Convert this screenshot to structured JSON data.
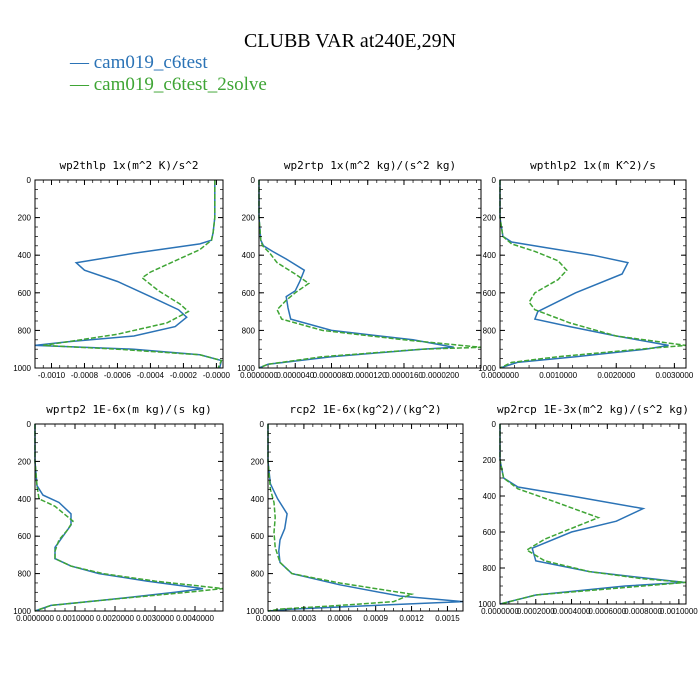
{
  "title": "CLUBB VAR at240E,29N",
  "legend": [
    {
      "label": "cam019_c6test",
      "color": "#2b73b6"
    },
    {
      "label": "cam019_c6test_2solve",
      "color": "#3fa535"
    }
  ],
  "chart_data": [
    {
      "type": "line",
      "title": "wp2thlp   1x(m^2 K)/s^2",
      "xlim": [
        -0.0011,
        4e-05
      ],
      "xticks": [
        -0.001,
        -0.0008,
        -0.0006,
        -0.0004,
        -0.0002,
        0.0
      ],
      "xtick_labels": [
        "-0.0010",
        "-0.0008",
        "-0.0006",
        "-0.0004",
        "-0.0002",
        "-0.0000"
      ],
      "ylim": [
        1000,
        0
      ],
      "yticks": [
        0,
        200,
        400,
        600,
        800,
        1000
      ],
      "series": [
        {
          "name": "cam019_c6test",
          "x": [
            -1e-05,
            -1e-05,
            -1e-05,
            -2e-05,
            -3e-05,
            -0.0001,
            -0.0005,
            -0.00085,
            -0.0008,
            -0.0006,
            -0.0004,
            -0.00023,
            -0.00018,
            -0.00025,
            -0.0005,
            -0.0009,
            -0.0011,
            -0.0005,
            -0.0001,
            3e-05,
            2e-05
          ],
          "y": [
            0,
            100,
            200,
            280,
            320,
            340,
            390,
            440,
            480,
            540,
            620,
            690,
            730,
            780,
            830,
            860,
            880,
            900,
            930,
            960,
            1000
          ]
        },
        {
          "name": "cam019_c6test_2solve",
          "x": [
            -1e-05,
            -1e-05,
            -1e-05,
            -2e-05,
            -3e-05,
            -0.0001,
            -0.00025,
            -0.0004,
            -0.00045,
            -0.00035,
            -0.00022,
            -0.00017,
            -0.0003,
            -0.0006,
            -0.0009,
            -0.00105,
            -0.0006,
            -0.0001,
            3e-05,
            1e-05
          ],
          "y": [
            0,
            100,
            200,
            280,
            320,
            370,
            430,
            490,
            520,
            590,
            660,
            700,
            760,
            820,
            860,
            880,
            900,
            930,
            960,
            1000
          ]
        }
      ]
    },
    {
      "type": "line",
      "title": "wp2rtp   1x(m^2 kg)/(s^2 kg)",
      "xlim": [
        0.0,
        2.45e-05
      ],
      "xticks": [
        0.0,
        4e-06,
        8e-06,
        1.2e-05,
        1.6e-05,
        2e-05
      ],
      "xtick_labels": [
        "0.0000000",
        "0.0000040",
        "0.0000080",
        "0.0000120",
        "0.0000160",
        "0.0000200"
      ],
      "ylim": [
        1000,
        0
      ],
      "yticks": [
        0,
        200,
        400,
        600,
        800,
        1000
      ],
      "series": [
        {
          "name": "cam019_c6test",
          "x": [
            0.0,
            0.0,
            2e-07,
            5e-07,
            1.5e-06,
            3e-06,
            5e-06,
            4.5e-06,
            4e-06,
            3e-06,
            3.2e-06,
            3.5e-06,
            8e-06,
            1.7e-05,
            2.15e-05,
            1.8e-05,
            8e-06,
            1e-06,
            0.0
          ],
          "y": [
            0,
            200,
            320,
            350,
            380,
            420,
            480,
            540,
            590,
            620,
            680,
            740,
            800,
            850,
            890,
            900,
            940,
            980,
            1000
          ]
        },
        {
          "name": "cam019_c6test_2solve",
          "x": [
            0.0,
            0.0,
            2e-07,
            4e-07,
            1.2e-06,
            2e-06,
            4e-06,
            5.5e-06,
            4e-06,
            3e-06,
            2e-06,
            2.5e-06,
            7e-06,
            1.6e-05,
            2.45e-05,
            1.8e-05,
            7e-06,
            1e-06,
            0.0
          ],
          "y": [
            0,
            200,
            320,
            350,
            390,
            440,
            500,
            550,
            600,
            640,
            690,
            740,
            800,
            850,
            890,
            900,
            940,
            980,
            1000
          ]
        }
      ]
    },
    {
      "type": "line",
      "title": "wpthlp2   1x(m K^2)/s",
      "xlim": [
        0.0,
        0.0032
      ],
      "xticks": [
        0.0,
        0.001,
        0.002,
        0.003
      ],
      "xtick_labels": [
        "0.0000000",
        "0.0010000",
        "0.0020000",
        "0.0030000"
      ],
      "ylim": [
        1000,
        0
      ],
      "yticks": [
        0,
        200,
        400,
        600,
        800,
        1000
      ],
      "series": [
        {
          "name": "cam019_c6test",
          "x": [
            0.0,
            0.0,
            5e-05,
            0.0002,
            0.0008,
            0.0016,
            0.0022,
            0.0021,
            0.0013,
            0.00065,
            0.0006,
            0.0012,
            0.002,
            0.0029,
            0.0025,
            0.0013,
            0.0003,
            0.0
          ],
          "y": [
            0,
            200,
            300,
            330,
            360,
            400,
            440,
            500,
            600,
            700,
            740,
            780,
            830,
            880,
            900,
            940,
            970,
            1000
          ]
        },
        {
          "name": "cam019_c6test_2solve",
          "x": [
            0.0,
            0.0,
            5e-05,
            0.0002,
            0.0006,
            0.001,
            0.00115,
            0.001,
            0.0006,
            0.0005,
            0.0006,
            0.0012,
            0.002,
            0.0032,
            0.0024,
            0.001,
            0.0002,
            0.0
          ],
          "y": [
            0,
            200,
            300,
            340,
            380,
            430,
            480,
            530,
            600,
            650,
            690,
            760,
            830,
            880,
            900,
            940,
            970,
            1000
          ]
        }
      ]
    },
    {
      "type": "line",
      "title": "wprtp2   1E-6x(m kg)/(s kg)",
      "xlim": [
        0.0,
        0.0047
      ],
      "xticks": [
        0.0,
        0.001,
        0.002,
        0.003,
        0.004
      ],
      "xtick_labels": [
        "0.0000000",
        "0.0010000",
        "0.0020000",
        "0.0030000",
        "0.0040000"
      ],
      "ylim": [
        1000,
        0
      ],
      "yticks": [
        0,
        200,
        400,
        600,
        800,
        1000
      ],
      "series": [
        {
          "name": "cam019_c6test",
          "x": [
            0.0,
            0.0,
            5e-05,
            0.0002,
            0.0006,
            0.0009,
            0.0009,
            0.0007,
            0.0005,
            0.0005,
            0.0009,
            0.0016,
            0.0028,
            0.0042,
            0.0035,
            0.0018,
            0.0004,
            0.0
          ],
          "y": [
            0,
            200,
            330,
            380,
            420,
            480,
            540,
            600,
            660,
            720,
            760,
            800,
            840,
            880,
            900,
            940,
            970,
            1000
          ]
        },
        {
          "name": "cam019_c6test_2solve",
          "x": [
            0.0,
            0.0,
            5e-05,
            0.0001,
            0.0005,
            0.00095,
            0.0008,
            0.0006,
            0.0005,
            0.0005,
            0.0009,
            0.0017,
            0.003,
            0.0047,
            0.0038,
            0.0018,
            0.0004,
            0.0
          ],
          "y": [
            0,
            200,
            330,
            400,
            440,
            520,
            570,
            620,
            680,
            720,
            760,
            800,
            840,
            880,
            900,
            940,
            970,
            1000
          ]
        }
      ]
    },
    {
      "type": "line",
      "title": "rcp2   1E-6x(kg^2)/(kg^2)",
      "xlim": [
        0.0,
        0.00163
      ],
      "xticks": [
        0.0,
        0.0003,
        0.0006,
        0.0009,
        0.0012,
        0.0015
      ],
      "xtick_labels": [
        "0.0000",
        "0.0003",
        "0.0006",
        "0.0009",
        "0.0012",
        "0.0015"
      ],
      "ylim": [
        1000,
        0
      ],
      "yticks": [
        0,
        200,
        400,
        600,
        800,
        1000
      ],
      "series": [
        {
          "name": "cam019_c6test",
          "x": [
            0.0,
            0.0,
            2e-05,
            8e-05,
            0.00016,
            0.00014,
            0.0001,
            9e-05,
            0.0001,
            0.0002,
            0.0006,
            0.0011,
            0.00163,
            0.0009,
            0.0002,
            0.0
          ],
          "y": [
            0,
            200,
            320,
            400,
            480,
            560,
            620,
            680,
            740,
            800,
            860,
            920,
            950,
            970,
            990,
            1000
          ]
        },
        {
          "name": "cam019_c6test_2solve",
          "x": [
            0.0,
            0.0,
            2e-05,
            5e-05,
            6e-05,
            5e-05,
            6e-05,
            0.0001,
            0.0002,
            0.0006,
            0.0012,
            0.00105,
            0.0006,
            0.0001,
            0.0
          ],
          "y": [
            0,
            200,
            350,
            420,
            500,
            580,
            660,
            740,
            800,
            850,
            910,
            950,
            970,
            990,
            1000
          ]
        }
      ]
    },
    {
      "type": "line",
      "title": "wp2rcp   1E-3x(m^2 kg)/(s^2 kg)",
      "xlim": [
        0.0,
        0.00104
      ],
      "xticks": [
        0.0,
        0.0002,
        0.0004,
        0.0006,
        0.0008,
        0.001
      ],
      "xtick_labels": [
        "0.0000000",
        "0.0002000",
        "0.0004000",
        "0.0006000",
        "0.0008000",
        "0.0010000"
      ],
      "ylim": [
        1000,
        0
      ],
      "yticks": [
        0,
        200,
        400,
        600,
        800,
        1000
      ],
      "series": [
        {
          "name": "cam019_c6test",
          "x": [
            0.0,
            0.0,
            2e-05,
            0.0001,
            0.0004,
            0.0008,
            0.00065,
            0.0004,
            0.00018,
            0.0002,
            0.0005,
            0.00085,
            0.00103,
            0.0007,
            0.0002,
            0.0
          ],
          "y": [
            0,
            200,
            300,
            350,
            400,
            470,
            540,
            600,
            690,
            760,
            820,
            860,
            880,
            900,
            950,
            1000
          ]
        },
        {
          "name": "cam019_c6test_2solve",
          "x": [
            0.0,
            0.0,
            2e-05,
            0.0001,
            0.0003,
            0.00055,
            0.0004,
            0.00025,
            0.00015,
            0.00025,
            0.0005,
            0.0008,
            0.00104,
            0.0008,
            0.0002,
            0.0
          ],
          "y": [
            0,
            200,
            300,
            360,
            430,
            520,
            580,
            640,
            700,
            760,
            820,
            860,
            880,
            900,
            950,
            1000
          ]
        }
      ]
    }
  ]
}
